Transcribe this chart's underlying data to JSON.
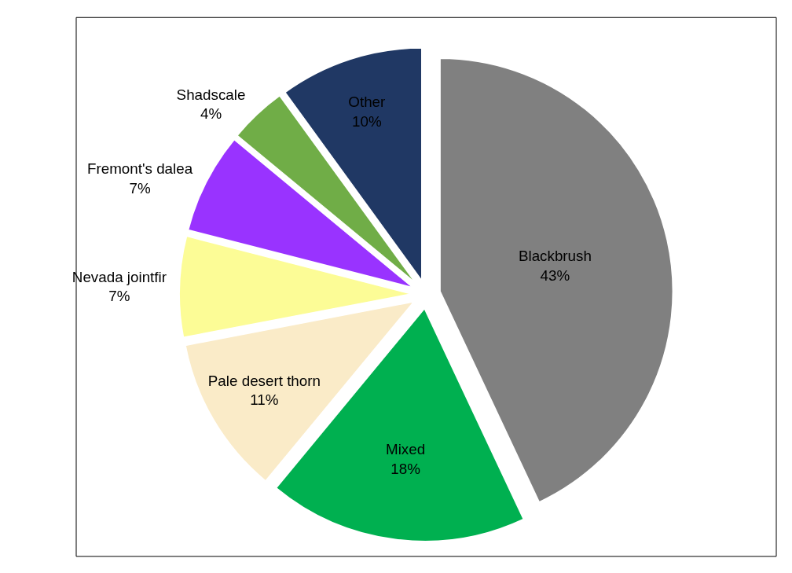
{
  "chart_data": {
    "type": "pie",
    "categories": [
      "Blackbrush",
      "Mixed",
      "Pale desert thorn",
      "Nevada jointfir",
      "Fremont's dalea",
      "Shadscale",
      "Other"
    ],
    "values": [
      43,
      18,
      11,
      7,
      7,
      4,
      10
    ],
    "value_labels": [
      "43%",
      "18%",
      "11%",
      "7%",
      "7%",
      "4%",
      "10%"
    ],
    "colors": [
      "#808080",
      "#00b050",
      "#faebc8",
      "#fcfc96",
      "#9933ff",
      "#70ad47",
      "#203864"
    ],
    "legend": false
  }
}
